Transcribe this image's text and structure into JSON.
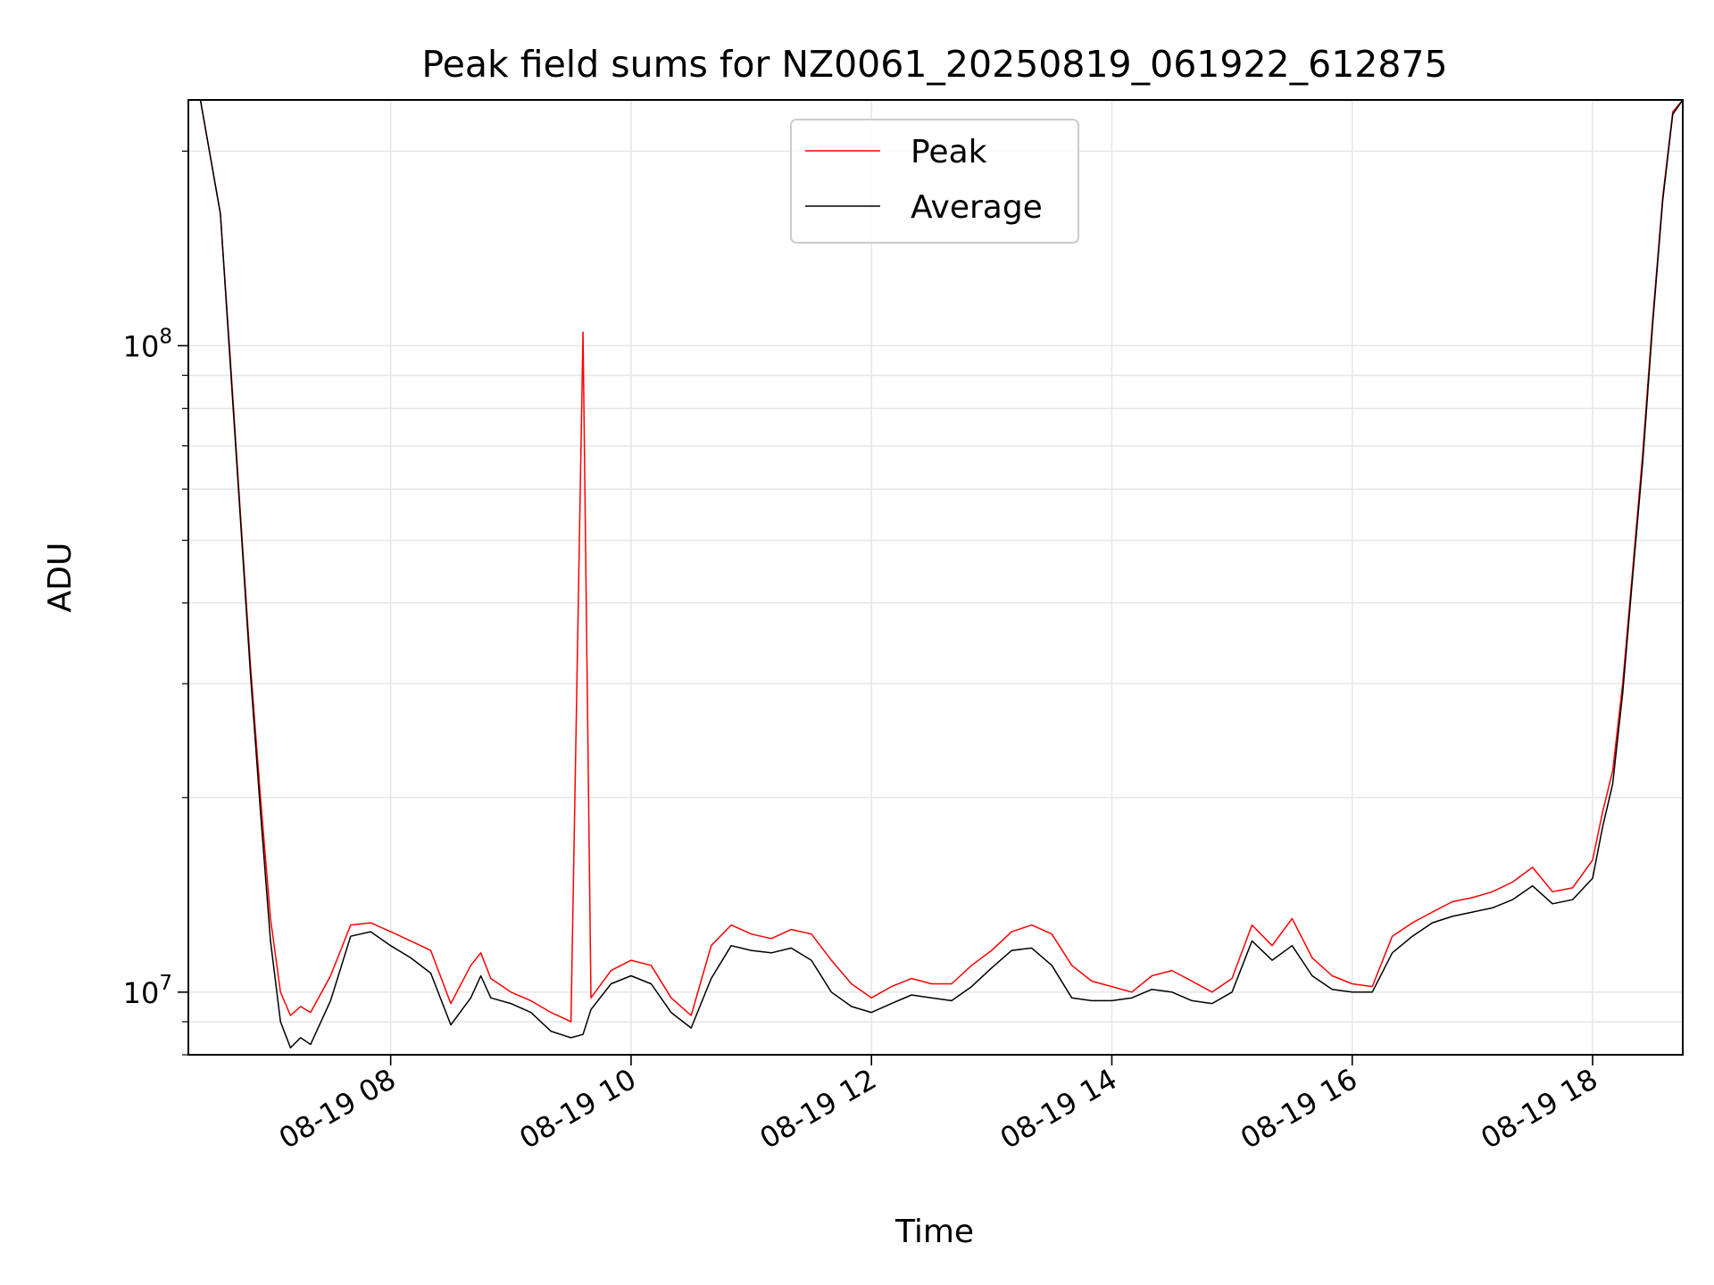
{
  "chart_data": {
    "type": "line",
    "title": "Peak field sums for NZ0061_20250819_061922_612875",
    "xlabel": "Time",
    "ylabel": "ADU",
    "yscale": "log",
    "xlim": [
      "2025-08-19 06:19",
      "2025-08-19 18:45"
    ],
    "ylim": [
      8000000,
      240000000
    ],
    "x_ticks": [
      "08-19 08",
      "08-19 10",
      "08-19 12",
      "08-19 14",
      "08-19 16",
      "08-19 18"
    ],
    "y_ticks": [
      {
        "base": "10",
        "exp": "7",
        "value": 10000000
      },
      {
        "base": "10",
        "exp": "8",
        "value": 100000000
      }
    ],
    "grid": true,
    "legend": "upper center",
    "series": [
      {
        "name": "Peak",
        "color": "#ff0000",
        "x": [
          "06:19",
          "06:25",
          "06:35",
          "06:40",
          "06:45",
          "06:50",
          "06:55",
          "07:00",
          "07:05",
          "07:10",
          "07:15",
          "07:20",
          "07:30",
          "07:40",
          "07:50",
          "08:00",
          "08:10",
          "08:20",
          "08:30",
          "08:40",
          "08:45",
          "08:50",
          "09:00",
          "09:10",
          "09:20",
          "09:30",
          "09:36",
          "09:40",
          "09:50",
          "10:00",
          "10:10",
          "10:20",
          "10:30",
          "10:40",
          "10:50",
          "11:00",
          "11:10",
          "11:20",
          "11:30",
          "11:40",
          "11:50",
          "12:00",
          "12:10",
          "12:20",
          "12:30",
          "12:40",
          "12:50",
          "13:00",
          "13:10",
          "13:20",
          "13:30",
          "13:40",
          "13:50",
          "14:00",
          "14:10",
          "14:20",
          "14:30",
          "14:40",
          "14:50",
          "15:00",
          "15:10",
          "15:20",
          "15:30",
          "15:40",
          "15:50",
          "16:00",
          "16:10",
          "16:20",
          "16:30",
          "16:40",
          "16:50",
          "17:00",
          "17:10",
          "17:20",
          "17:30",
          "17:40",
          "17:50",
          "18:00",
          "18:05",
          "18:10",
          "18:15",
          "18:20",
          "18:25",
          "18:30",
          "18:35",
          "18:40",
          "18:45"
        ],
        "y": [
          240000000,
          240000000,
          160000000,
          95000000,
          55000000,
          32000000,
          20000000,
          13000000,
          10000000,
          9200000,
          9500000,
          9300000,
          10600000,
          12700000,
          12800000,
          12400000,
          12000000,
          11600000,
          9600000,
          11000000,
          11500000,
          10500000,
          10000000,
          9700000,
          9300000,
          9000000,
          105000000,
          9800000,
          10800000,
          11200000,
          11000000,
          9800000,
          9200000,
          11800000,
          12700000,
          12300000,
          12100000,
          12500000,
          12300000,
          11200000,
          10300000,
          9800000,
          10200000,
          10500000,
          10300000,
          10300000,
          11000000,
          11600000,
          12400000,
          12700000,
          12300000,
          11000000,
          10400000,
          10200000,
          10000000,
          10600000,
          10800000,
          10400000,
          10000000,
          10500000,
          12700000,
          11800000,
          13000000,
          11300000,
          10600000,
          10300000,
          10200000,
          12200000,
          12800000,
          13300000,
          13800000,
          14000000,
          14300000,
          14800000,
          15600000,
          14300000,
          14500000,
          16000000,
          19000000,
          22000000,
          30000000,
          45000000,
          68000000,
          110000000,
          170000000,
          230000000,
          240000000
        ]
      },
      {
        "name": "Average",
        "color": "#000000",
        "x": [
          "06:19",
          "06:25",
          "06:35",
          "06:40",
          "06:45",
          "06:50",
          "06:55",
          "07:00",
          "07:05",
          "07:10",
          "07:15",
          "07:20",
          "07:30",
          "07:40",
          "07:50",
          "08:00",
          "08:10",
          "08:20",
          "08:30",
          "08:40",
          "08:45",
          "08:50",
          "09:00",
          "09:10",
          "09:20",
          "09:30",
          "09:36",
          "09:40",
          "09:50",
          "10:00",
          "10:10",
          "10:20",
          "10:30",
          "10:40",
          "10:50",
          "11:00",
          "11:10",
          "11:20",
          "11:30",
          "11:40",
          "11:50",
          "12:00",
          "12:10",
          "12:20",
          "12:30",
          "12:40",
          "12:50",
          "13:00",
          "13:10",
          "13:20",
          "13:30",
          "13:40",
          "13:50",
          "14:00",
          "14:10",
          "14:20",
          "14:30",
          "14:40",
          "14:50",
          "15:00",
          "15:10",
          "15:20",
          "15:30",
          "15:40",
          "15:50",
          "16:00",
          "16:10",
          "16:20",
          "16:30",
          "16:40",
          "16:50",
          "17:00",
          "17:10",
          "17:20",
          "17:30",
          "17:40",
          "17:50",
          "18:00",
          "18:05",
          "18:10",
          "18:15",
          "18:20",
          "18:25",
          "18:30",
          "18:35",
          "18:40",
          "18:45"
        ],
        "y": [
          240000000,
          240000000,
          160000000,
          93000000,
          54000000,
          31000000,
          19000000,
          12000000,
          9000000,
          8200000,
          8500000,
          8300000,
          9700000,
          12200000,
          12400000,
          11800000,
          11300000,
          10700000,
          8900000,
          9800000,
          10600000,
          9800000,
          9600000,
          9300000,
          8700000,
          8500000,
          8600000,
          9400000,
          10300000,
          10600000,
          10300000,
          9300000,
          8800000,
          10500000,
          11800000,
          11600000,
          11500000,
          11700000,
          11200000,
          10000000,
          9500000,
          9300000,
          9600000,
          9900000,
          9800000,
          9700000,
          10200000,
          10900000,
          11600000,
          11700000,
          11000000,
          9800000,
          9700000,
          9700000,
          9800000,
          10100000,
          10000000,
          9700000,
          9600000,
          10000000,
          12000000,
          11200000,
          11800000,
          10600000,
          10100000,
          10000000,
          10000000,
          11500000,
          12200000,
          12800000,
          13100000,
          13300000,
          13500000,
          13900000,
          14600000,
          13700000,
          13900000,
          15000000,
          18000000,
          21000000,
          29000000,
          44000000,
          66000000,
          108000000,
          168000000,
          228000000,
          240000000
        ]
      }
    ]
  }
}
